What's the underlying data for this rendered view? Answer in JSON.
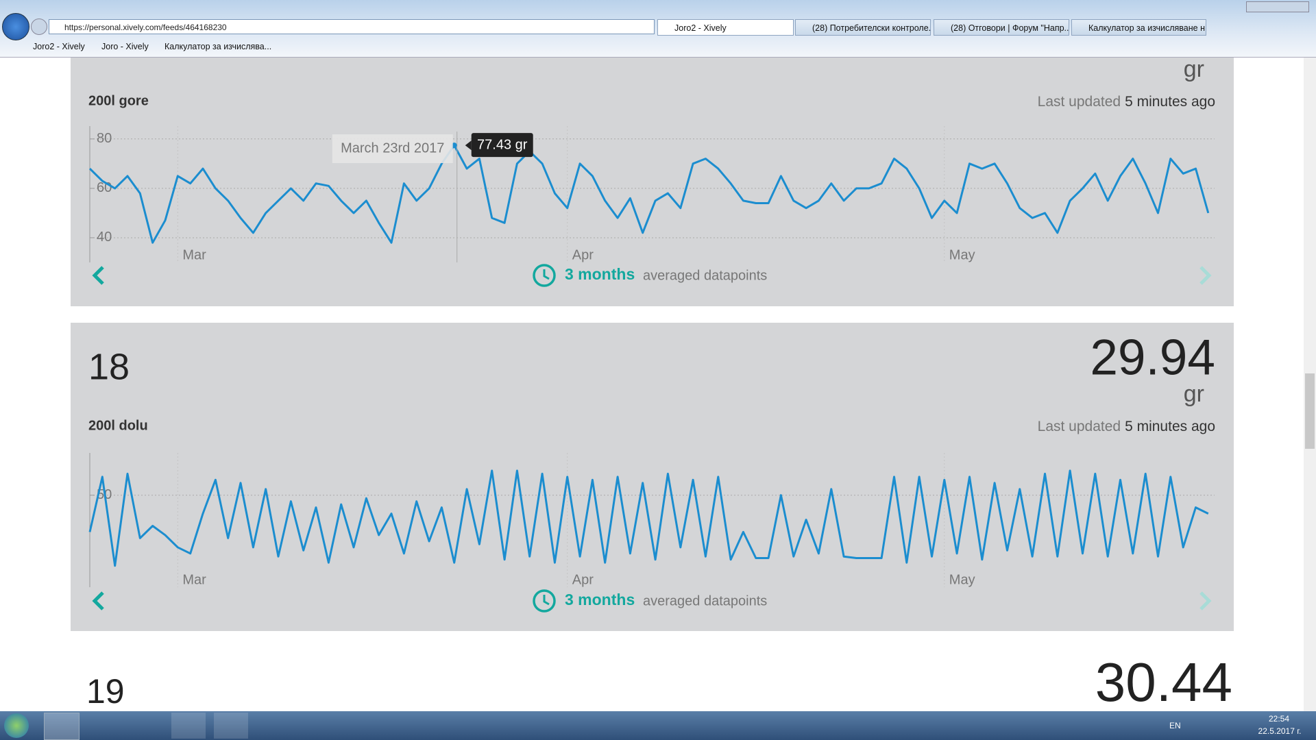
{
  "browser": {
    "url": "https://personal.xively.com/feeds/464168230",
    "tabs": [
      "Joro2 - Xively",
      "(28) Потребителски контроле...",
      "(28) Отговори | Форум \"Напр...",
      "Калкулатор за изчисляване н..."
    ],
    "favorites": [
      "Joro2 - Xively",
      "Joro - Xively",
      "Калкулатор за изчислява..."
    ]
  },
  "panels": [
    {
      "unit": "gr",
      "name": "200l gore",
      "updated_prefix": "Last updated",
      "updated_time": "5 minutes ago",
      "range": "3 months",
      "range_note": "averaged datapoints",
      "tooltip": {
        "date": "March 23rd 2017",
        "value": "77.43 gr"
      },
      "chart": {
        "type": "line",
        "color": "#1b8dcf",
        "values": [
          68,
          63,
          60,
          65,
          58,
          38,
          47,
          65,
          62,
          68,
          60,
          55,
          48,
          42,
          50,
          55,
          60,
          55,
          62,
          61,
          55,
          50,
          55,
          46,
          38,
          62,
          55,
          60,
          70,
          77.43,
          68,
          72,
          48,
          46,
          70,
          75,
          70,
          58,
          52,
          70,
          65,
          55,
          48,
          56,
          42,
          55,
          58,
          52,
          70,
          72,
          68,
          62,
          55,
          54,
          54,
          65,
          55,
          52,
          55,
          62,
          55,
          60,
          60,
          62,
          72,
          68,
          60,
          48,
          55,
          50,
          70,
          68,
          70,
          62,
          52,
          48,
          50,
          42,
          55,
          60,
          66,
          55,
          65,
          72,
          62,
          50,
          72,
          66,
          68,
          50
        ],
        "xlim": [
          0,
          89.5
        ],
        "xticks": [
          {
            "value": 7,
            "label": "Mar"
          },
          {
            "value": 38,
            "label": "Apr"
          },
          {
            "value": 68,
            "label": "May"
          }
        ],
        "ylim": [
          30,
          83
        ],
        "yticks": [
          40,
          60,
          80
        ]
      }
    },
    {
      "id": "18",
      "reading": "29.94",
      "unit": "gr",
      "name": "200l dolu",
      "updated_prefix": "Last updated",
      "updated_time": "5 minutes ago",
      "range": "3 months",
      "range_note": "averaged datapoints",
      "chart": {
        "type": "line",
        "color": "#1b8dcf",
        "values": [
          38,
          56,
          27,
          57,
          36,
          40,
          37,
          33,
          31,
          44,
          55,
          36,
          54,
          33,
          52,
          30,
          48,
          32,
          46,
          28,
          47,
          33,
          49,
          37,
          44,
          31,
          48,
          35,
          46,
          28,
          52,
          34,
          58,
          29,
          58,
          30,
          57,
          28,
          56,
          30,
          55,
          28,
          56,
          31,
          54,
          29,
          57,
          33,
          55,
          30,
          56,
          29,
          38,
          29.5,
          29.5,
          50,
          30,
          42,
          31,
          52,
          30,
          29.5,
          29.5,
          29.5,
          56,
          28,
          56,
          30,
          55,
          31,
          56,
          29,
          54,
          32,
          52,
          30,
          57,
          30,
          58,
          31,
          57,
          30,
          55,
          31,
          57,
          30,
          56,
          33,
          46,
          44
        ],
        "xlim": [
          0,
          89.5
        ],
        "xticks": [
          {
            "value": 7,
            "label": "Mar"
          },
          {
            "value": 38,
            "label": "Apr"
          },
          {
            "value": 68,
            "label": "May"
          }
        ],
        "ylim": [
          20,
          62
        ],
        "yticks": [
          50
        ]
      }
    },
    {
      "id": "19",
      "reading": "30.44"
    }
  ],
  "taskbar": {
    "lang": "EN",
    "time": "22:54",
    "date": "22.5.2017 г."
  }
}
